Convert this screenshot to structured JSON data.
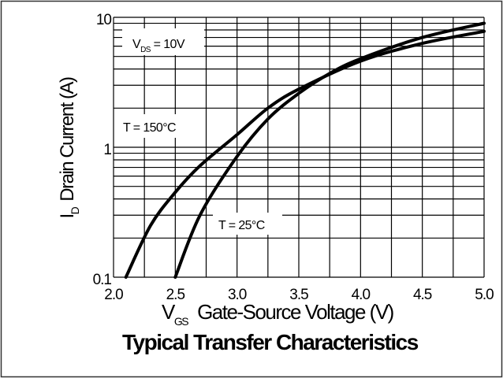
{
  "chart_data": {
    "type": "line",
    "title": "Typical Transfer Characteristics",
    "xlabel": {
      "symbol": "V",
      "sub": "GS",
      "text": "Gate-Source Voltage (V)"
    },
    "ylabel": {
      "symbol": "I",
      "sub": "D",
      "text": "Drain Current (A)"
    },
    "xlim": [
      2.0,
      5.0
    ],
    "ylim": [
      0.1,
      10
    ],
    "yscale": "log",
    "grid": true,
    "x_ticks": [
      "2.0",
      "2.5",
      "3.0",
      "3.5",
      "4.0",
      "4.5",
      "5.0"
    ],
    "y_ticks": [
      "0.1",
      "1",
      "10"
    ],
    "series": [
      {
        "name": "T = 150°C",
        "x": [
          2.1,
          2.3,
          2.5,
          2.7,
          3.0,
          3.25,
          3.5,
          4.0,
          4.5,
          5.0
        ],
        "y": [
          0.1,
          0.25,
          0.45,
          0.72,
          1.25,
          2.0,
          2.8,
          4.6,
          6.3,
          7.8
        ]
      },
      {
        "name": "T = 25°C",
        "x": [
          2.5,
          2.7,
          3.0,
          3.25,
          3.5,
          3.75,
          4.0,
          4.5,
          5.0
        ],
        "y": [
          0.1,
          0.3,
          0.85,
          1.65,
          2.6,
          3.7,
          4.8,
          7.0,
          9.0
        ]
      }
    ],
    "annotations": {
      "vds": {
        "symbol": "V",
        "sub": "DS",
        "text": " = 10V"
      },
      "t150": "T = 150°C",
      "t25": "T = 25°C"
    }
  }
}
